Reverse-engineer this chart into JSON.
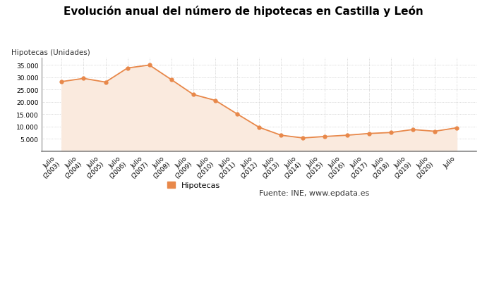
{
  "title": "Evolución anual del número de hipotecas en Castilla y León",
  "ylabel": "Hipotecas (Unidades)",
  "legend_label": "Hipotecas",
  "source_text": "Fuente: INE, www.epdata.es",
  "x_labels": [
    "Julio\n(2003)",
    "Julio\n(2004)",
    "Julio\n(2005)",
    "Julio\n(2006)",
    "Julio\n(2007)",
    "Julio\n(2008)",
    "Julio\n(2009)",
    "Julio\n(2010)",
    "Julio\n(2011)",
    "Julio\n(2012)",
    "Julio\n(2013)",
    "Julio\n(2014)",
    "Julio\n(2015)",
    "Julio\n(2016)",
    "Julio\n(2017)",
    "Julio\n(2018)",
    "Julio\n(2019)",
    "Julio\n(2020)",
    "Julio"
  ],
  "values": [
    28200,
    29500,
    28000,
    33700,
    34900,
    29000,
    23000,
    20600,
    15100,
    9700,
    6500,
    5400,
    6000,
    6500,
    7200,
    7600,
    8800,
    8100,
    9500
  ],
  "line_color": "#E8884A",
  "fill_color": "#FAEADE",
  "marker_color": "#E8884A",
  "bg_color": "#FFFFFF",
  "plot_bg_color": "#FFFFFF",
  "grid_color": "#BBBBBB",
  "title_fontsize": 11,
  "label_fontsize": 7.5,
  "tick_fontsize": 6.5,
  "ylim": [
    0,
    38000
  ],
  "yticks": [
    5000,
    10000,
    15000,
    20000,
    25000,
    30000,
    35000
  ]
}
